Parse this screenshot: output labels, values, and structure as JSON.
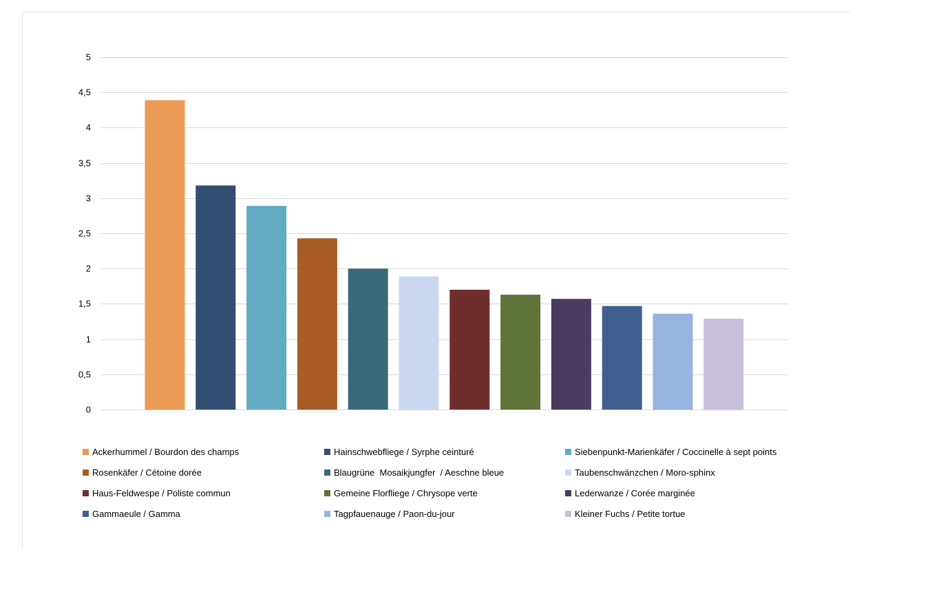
{
  "chart_data": {
    "type": "bar",
    "title": "",
    "xlabel": "",
    "ylabel": "",
    "ylim": [
      0,
      5
    ],
    "yticks": [
      {
        "value": 0,
        "label": "0"
      },
      {
        "value": 0.5,
        "label": "0,5"
      },
      {
        "value": 1,
        "label": "1"
      },
      {
        "value": 1.5,
        "label": "1,5"
      },
      {
        "value": 2,
        "label": "2"
      },
      {
        "value": 2.5,
        "label": "2,5"
      },
      {
        "value": 3,
        "label": "3"
      },
      {
        "value": 3.5,
        "label": "3,5"
      },
      {
        "value": 4,
        "label": "4"
      },
      {
        "value": 4.5,
        "label": "4,5"
      },
      {
        "value": 5,
        "label": "5"
      }
    ],
    "grid": true,
    "legend_placement": "bottom",
    "series": [
      {
        "name": "Ackerhummel / Bourdon des champs",
        "value": 4.39,
        "color": "#EB9B56"
      },
      {
        "name": "Hainschwebfliege / Syrphe ceinturé",
        "value": 3.18,
        "color": "#334D73"
      },
      {
        "name": "Siebenpunkt-Marienkäfer / Coccinelle à sept points",
        "value": 2.89,
        "color": "#63AAC3"
      },
      {
        "name": "Rosenkäfer / Cétoine dorée",
        "value": 2.43,
        "color": "#A95B25"
      },
      {
        "name": "Blaugrüne  Mosaikjungfer  / Aeschne bleue",
        "value": 2.0,
        "color": "#3A6A78"
      },
      {
        "name": "Taubenschwänzchen / Moro-sphinx",
        "value": 1.89,
        "color": "#CAD8EF"
      },
      {
        "name": "Haus-Feldwespe / Poliste commun",
        "value": 1.7,
        "color": "#6F2D2C"
      },
      {
        "name": "Gemeine Florfliege / Chrysope verte",
        "value": 1.63,
        "color": "#60743A"
      },
      {
        "name": "Lederwanze / Corée marginée",
        "value": 1.57,
        "color": "#4A3B60"
      },
      {
        "name": "Gammaeule / Gamma",
        "value": 1.47,
        "color": "#3F5E8E"
      },
      {
        "name": "Tagpfauenauge / Paon-du-jour",
        "value": 1.36,
        "color": "#99B3DF"
      },
      {
        "name": "Kleiner Fuchs / Petite tortue",
        "value": 1.29,
        "color": "#C8C0DA"
      }
    ]
  }
}
